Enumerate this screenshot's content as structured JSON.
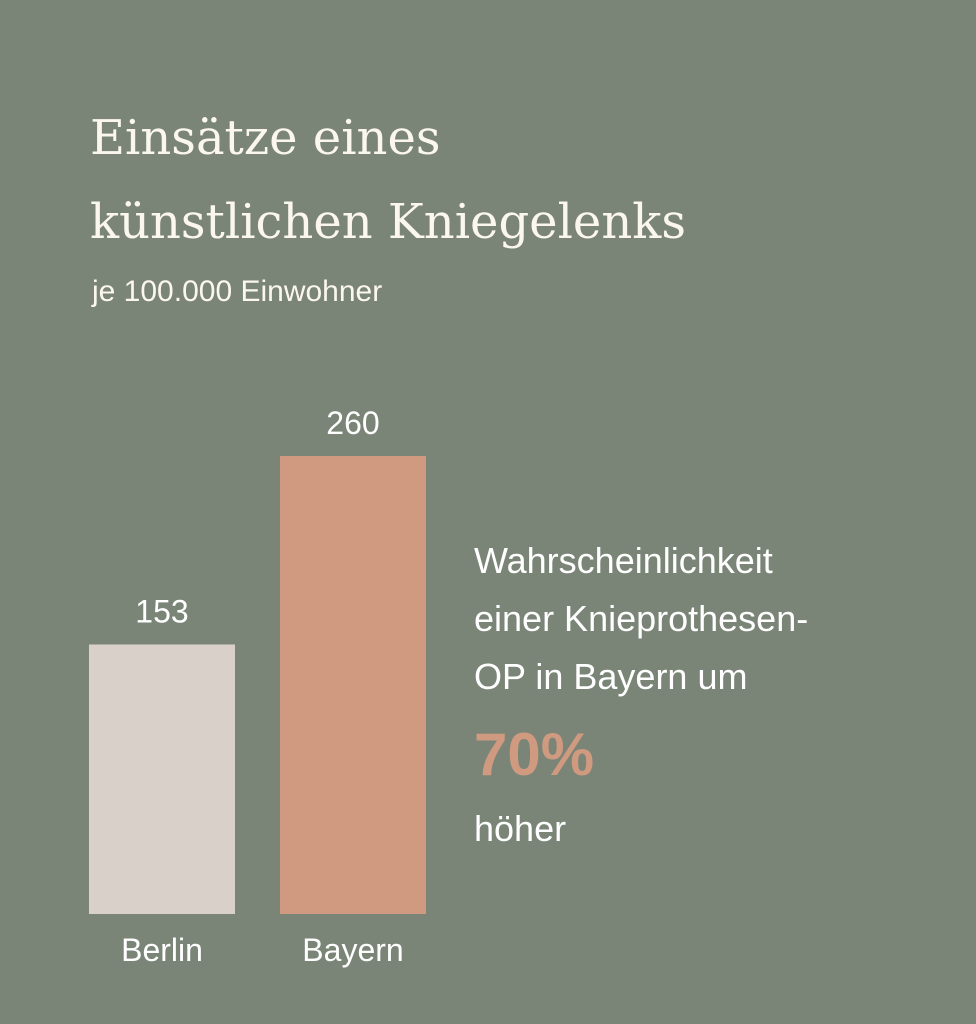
{
  "header": {
    "title_line1": "Einsätze eines",
    "title_line2": "künstlichen Kniegelenks",
    "subtitle": "je 100.000 Einwohner"
  },
  "chart_data": {
    "type": "bar",
    "categories": [
      "Berlin",
      "Bayern"
    ],
    "values": [
      153,
      260
    ],
    "colors": [
      "#d9d0c9",
      "#cf9a80"
    ],
    "title": "Einsätze eines künstlichen Kniegelenks",
    "subtitle": "je 100.000 Einwohner",
    "xlabel": "",
    "ylabel": "",
    "ylim": [
      0,
      260
    ],
    "grid": false
  },
  "annotation": {
    "line1": "Wahrscheinlichkeit",
    "line2": "einer Knieprothesen-",
    "line3": "OP in Bayern um",
    "highlight": "70%",
    "line4": "höher",
    "highlight_color": "#cf9a80"
  },
  "colors": {
    "background": "#7a8577",
    "text": "#ffffff"
  }
}
